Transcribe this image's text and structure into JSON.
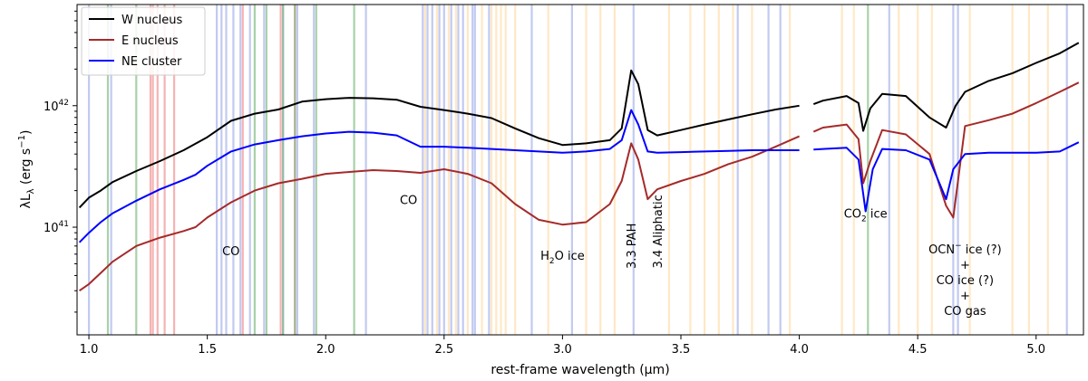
{
  "chart_data": {
    "type": "line",
    "xlabel": "rest-frame wavelength (μm)",
    "ylabel": "λL",
    "ylabel_sub": "λ",
    "ylabel_unit": " (erg s",
    "ylabel_unit_exp": "−1",
    "ylabel_close": ")",
    "xlim": [
      0.95,
      5.2
    ],
    "ylim": [
      1.3e+40,
      6.8e+42
    ],
    "yscale": "log",
    "grid": false,
    "legend_position": "top-left",
    "xticks": [
      1.0,
      1.5,
      2.0,
      2.5,
      3.0,
      3.5,
      4.0,
      4.5,
      5.0
    ],
    "xtick_labels": [
      "1.0",
      "1.5",
      "2.0",
      "2.5",
      "3.0",
      "3.5",
      "4.0",
      "4.5",
      "5.0"
    ],
    "yticks": [
      {
        "value": 1e+41,
        "base": "10",
        "exp": "41"
      },
      {
        "value": 1e+42,
        "base": "10",
        "exp": "42"
      }
    ],
    "gap": [
      4.0,
      4.05
    ],
    "series": [
      {
        "name": "W nucleus",
        "color": "#000000",
        "points": [
          [
            0.96,
            1.45e+41
          ],
          [
            1.0,
            1.75e+41
          ],
          [
            1.05,
            2e+41
          ],
          [
            1.1,
            2.35e+41
          ],
          [
            1.2,
            2.9e+41
          ],
          [
            1.3,
            3.5e+41
          ],
          [
            1.4,
            4.3e+41
          ],
          [
            1.5,
            5.5e+41
          ],
          [
            1.6,
            7.5e+41
          ],
          [
            1.7,
            8.6e+41
          ],
          [
            1.8,
            9.3e+41
          ],
          [
            1.9,
            1.08e+42
          ],
          [
            2.0,
            1.13e+42
          ],
          [
            2.1,
            1.16e+42
          ],
          [
            2.2,
            1.15e+42
          ],
          [
            2.3,
            1.12e+42
          ],
          [
            2.4,
            9.8e+41
          ],
          [
            2.5,
            9.2e+41
          ],
          [
            2.6,
            8.6e+41
          ],
          [
            2.7,
            7.9e+41
          ],
          [
            2.8,
            6.5e+41
          ],
          [
            2.9,
            5.4e+41
          ],
          [
            3.0,
            4.75e+41
          ],
          [
            3.1,
            4.9e+41
          ],
          [
            3.2,
            5.2e+41
          ],
          [
            3.25,
            6.5e+41
          ],
          [
            3.29,
            1.95e+42
          ],
          [
            3.32,
            1.5e+42
          ],
          [
            3.36,
            6.3e+41
          ],
          [
            3.4,
            5.7e+41
          ],
          [
            3.5,
            6.3e+41
          ],
          [
            3.6,
            7e+41
          ],
          [
            3.7,
            7.7e+41
          ],
          [
            3.8,
            8.5e+41
          ],
          [
            3.9,
            9.3e+41
          ],
          [
            4.0,
            1e+42
          ],
          [
            4.06,
            1.03e+42
          ],
          [
            4.1,
            1.1e+42
          ],
          [
            4.2,
            1.2e+42
          ],
          [
            4.25,
            1.05e+42
          ],
          [
            4.27,
            6.2e+41
          ],
          [
            4.3,
            9.5e+41
          ],
          [
            4.35,
            1.25e+42
          ],
          [
            4.45,
            1.2e+42
          ],
          [
            4.55,
            8e+41
          ],
          [
            4.62,
            6.6e+41
          ],
          [
            4.66,
            1e+42
          ],
          [
            4.7,
            1.3e+42
          ],
          [
            4.8,
            1.6e+42
          ],
          [
            4.9,
            1.85e+42
          ],
          [
            5.0,
            2.25e+42
          ],
          [
            5.1,
            2.7e+42
          ],
          [
            5.18,
            3.3e+42
          ]
        ]
      },
      {
        "name": "E nucleus",
        "color": "#a52a2a",
        "points": [
          [
            0.96,
            3e+40
          ],
          [
            1.0,
            3.4e+40
          ],
          [
            1.05,
            4.2e+40
          ],
          [
            1.1,
            5.2e+40
          ],
          [
            1.2,
            7e+40
          ],
          [
            1.3,
            8.2e+40
          ],
          [
            1.4,
            9.3e+40
          ],
          [
            1.45,
            1e+41
          ],
          [
            1.5,
            1.2e+41
          ],
          [
            1.6,
            1.6e+41
          ],
          [
            1.7,
            2e+41
          ],
          [
            1.8,
            2.3e+41
          ],
          [
            1.9,
            2.5e+41
          ],
          [
            2.0,
            2.75e+41
          ],
          [
            2.1,
            2.85e+41
          ],
          [
            2.2,
            2.95e+41
          ],
          [
            2.3,
            2.9e+41
          ],
          [
            2.4,
            2.8e+41
          ],
          [
            2.5,
            3e+41
          ],
          [
            2.6,
            2.75e+41
          ],
          [
            2.7,
            2.3e+41
          ],
          [
            2.8,
            1.55e+41
          ],
          [
            2.9,
            1.15e+41
          ],
          [
            3.0,
            1.05e+41
          ],
          [
            3.1,
            1.1e+41
          ],
          [
            3.2,
            1.55e+41
          ],
          [
            3.25,
            2.4e+41
          ],
          [
            3.29,
            4.9e+41
          ],
          [
            3.32,
            3.6e+41
          ],
          [
            3.36,
            1.7e+41
          ],
          [
            3.4,
            2.05e+41
          ],
          [
            3.5,
            2.4e+41
          ],
          [
            3.6,
            2.75e+41
          ],
          [
            3.7,
            3.3e+41
          ],
          [
            3.8,
            3.8e+41
          ],
          [
            3.9,
            4.6e+41
          ],
          [
            4.0,
            5.6e+41
          ],
          [
            4.06,
            6.1e+41
          ],
          [
            4.1,
            6.6e+41
          ],
          [
            4.2,
            7e+41
          ],
          [
            4.25,
            5.3e+41
          ],
          [
            4.27,
            2.3e+41
          ],
          [
            4.3,
            3.5e+41
          ],
          [
            4.35,
            6.3e+41
          ],
          [
            4.45,
            5.8e+41
          ],
          [
            4.55,
            4e+41
          ],
          [
            4.62,
            1.5e+41
          ],
          [
            4.65,
            1.2e+41
          ],
          [
            4.7,
            6.8e+41
          ],
          [
            4.8,
            7.6e+41
          ],
          [
            4.9,
            8.6e+41
          ],
          [
            5.0,
            1.05e+42
          ],
          [
            5.1,
            1.3e+42
          ],
          [
            5.18,
            1.55e+42
          ]
        ]
      },
      {
        "name": "NE cluster",
        "color": "#0000ff",
        "points": [
          [
            0.96,
            7.5e+40
          ],
          [
            1.0,
            9e+40
          ],
          [
            1.05,
            1.1e+41
          ],
          [
            1.1,
            1.3e+41
          ],
          [
            1.2,
            1.65e+41
          ],
          [
            1.3,
            2.05e+41
          ],
          [
            1.4,
            2.45e+41
          ],
          [
            1.45,
            2.7e+41
          ],
          [
            1.5,
            3.2e+41
          ],
          [
            1.6,
            4.2e+41
          ],
          [
            1.7,
            4.8e+41
          ],
          [
            1.8,
            5.2e+41
          ],
          [
            1.9,
            5.6e+41
          ],
          [
            2.0,
            5.9e+41
          ],
          [
            2.1,
            6.1e+41
          ],
          [
            2.2,
            6e+41
          ],
          [
            2.3,
            5.7e+41
          ],
          [
            2.4,
            4.6e+41
          ],
          [
            2.5,
            4.6e+41
          ],
          [
            2.6,
            4.5e+41
          ],
          [
            2.7,
            4.4e+41
          ],
          [
            2.8,
            4.3e+41
          ],
          [
            2.9,
            4.2e+41
          ],
          [
            3.0,
            4.1e+41
          ],
          [
            3.1,
            4.2e+41
          ],
          [
            3.2,
            4.4e+41
          ],
          [
            3.25,
            5.2e+41
          ],
          [
            3.29,
            9.2e+41
          ],
          [
            3.32,
            7e+41
          ],
          [
            3.36,
            4.2e+41
          ],
          [
            3.4,
            4.1e+41
          ],
          [
            3.5,
            4.15e+41
          ],
          [
            3.6,
            4.2e+41
          ],
          [
            3.7,
            4.25e+41
          ],
          [
            3.8,
            4.3e+41
          ],
          [
            3.9,
            4.3e+41
          ],
          [
            4.0,
            4.3e+41
          ],
          [
            4.06,
            4.35e+41
          ],
          [
            4.1,
            4.4e+41
          ],
          [
            4.2,
            4.5e+41
          ],
          [
            4.25,
            3.6e+41
          ],
          [
            4.28,
            1.35e+41
          ],
          [
            4.31,
            3e+41
          ],
          [
            4.35,
            4.4e+41
          ],
          [
            4.45,
            4.3e+41
          ],
          [
            4.55,
            3.6e+41
          ],
          [
            4.62,
            1.7e+41
          ],
          [
            4.65,
            3e+41
          ],
          [
            4.7,
            4e+41
          ],
          [
            4.8,
            4.1e+41
          ],
          [
            4.9,
            4.1e+41
          ],
          [
            5.0,
            4.1e+41
          ],
          [
            5.1,
            4.2e+41
          ],
          [
            5.18,
            5e+41
          ]
        ]
      }
    ],
    "annotations": [
      {
        "text": "CO",
        "x": 1.6,
        "y": 5.9e+40,
        "rotate": false
      },
      {
        "text": "CO",
        "x": 2.35,
        "y": 1.55e+41,
        "rotate": false
      },
      {
        "text": "H",
        "sub": "2",
        "tail": "O ice",
        "x": 3.0,
        "y": 5.4e+40,
        "rotate": false
      },
      {
        "text": "3.3 PAH",
        "x": 3.29,
        "y": 7e+40,
        "rotate": true
      },
      {
        "text": "3.4 Aliphatic",
        "x": 3.4,
        "y": 9.2e+40,
        "rotate": true
      },
      {
        "text": "CO",
        "sub": "2",
        "tail": " ice",
        "x": 4.28,
        "y": 1.2e+41,
        "rotate": false
      }
    ],
    "ocn_label": {
      "x": 4.7,
      "lines": [
        {
          "text": "OCN",
          "sup": "−",
          "tail": " ice (?)"
        },
        {
          "text": "+"
        },
        {
          "text": "CO ice (?)"
        },
        {
          "text": "+"
        },
        {
          "text": "CO gas"
        }
      ]
    },
    "bands": {
      "blue": [
        1.0,
        1.094,
        1.54,
        1.56,
        1.58,
        1.61,
        1.64,
        1.68,
        1.74,
        1.82,
        1.88,
        1.95,
        2.17,
        2.41,
        2.43,
        2.45,
        2.48,
        2.5,
        2.53,
        2.56,
        2.58,
        2.62,
        2.63,
        2.69,
        2.87,
        3.04,
        3.3,
        3.74,
        3.87,
        3.92,
        4.38,
        4.65,
        4.67,
        5.13
      ],
      "red": [
        1.26,
        1.27,
        1.29,
        1.32,
        1.36,
        1.65,
        1.81,
        1.87
      ],
      "green": [
        1.08,
        1.2,
        1.7,
        1.75,
        1.82,
        1.87,
        1.96,
        2.12,
        4.29
      ],
      "orange": [
        2.42,
        2.47,
        2.52,
        2.55,
        2.6,
        2.66,
        2.7,
        2.72,
        2.74,
        2.76,
        2.8,
        2.94,
        3.1,
        3.16,
        3.22,
        3.45,
        3.54,
        3.6,
        3.66,
        3.72,
        3.8,
        3.96,
        4.18,
        4.23,
        4.42,
        4.5,
        4.56,
        4.72,
        4.9,
        4.97,
        5.05
      ]
    }
  }
}
